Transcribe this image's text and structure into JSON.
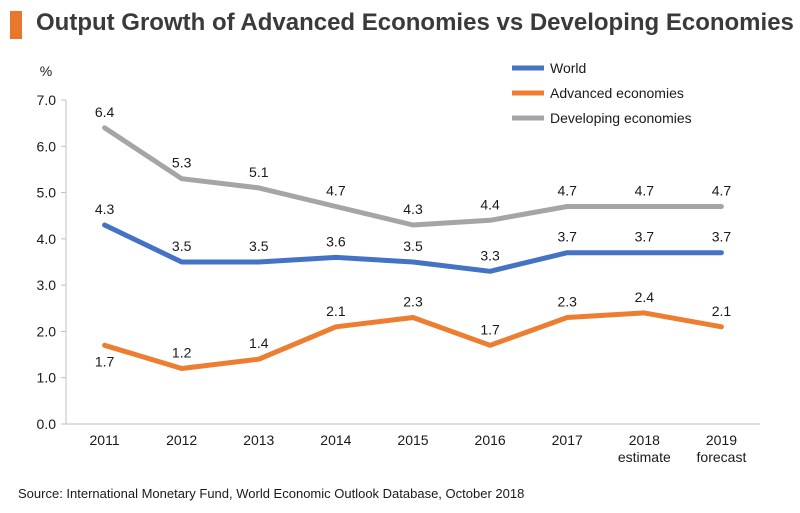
{
  "title": "Output Growth of Advanced Economies vs Developing Economies",
  "source": "Source: International Monetary Fund, World Economic Outlook Database, October 2018",
  "chart_data": {
    "type": "line",
    "ylabel": "%",
    "ylim": [
      0,
      7
    ],
    "yticks": [
      "0.0",
      "1.0",
      "2.0",
      "3.0",
      "4.0",
      "5.0",
      "6.0",
      "7.0"
    ],
    "categories": [
      [
        "2011"
      ],
      [
        "2012"
      ],
      [
        "2013"
      ],
      [
        "2014"
      ],
      [
        "2015"
      ],
      [
        "2016"
      ],
      [
        "2017"
      ],
      [
        "2018",
        "estimate"
      ],
      [
        "2019",
        "forecast"
      ]
    ],
    "series": [
      {
        "name": "World",
        "color": "#4472c4",
        "values": [
          4.3,
          3.5,
          3.5,
          3.6,
          3.5,
          3.3,
          3.7,
          3.7,
          3.7
        ],
        "labels": [
          "4.3",
          "3.5",
          "3.5",
          "3.6",
          "3.5",
          "3.3",
          "3.7",
          "3.7",
          "3.7"
        ],
        "label_pos": [
          "above",
          "above",
          "above",
          "above",
          "above",
          "above",
          "above",
          "above",
          "above"
        ]
      },
      {
        "name": "Advanced economies",
        "color": "#ed7d31",
        "values": [
          1.7,
          1.2,
          1.4,
          2.1,
          2.3,
          1.7,
          2.3,
          2.4,
          2.1
        ],
        "labels": [
          "1.7",
          "1.2",
          "1.4",
          "2.1",
          "2.3",
          "1.7",
          "2.3",
          "2.4",
          "2.1"
        ],
        "label_pos": [
          "below",
          "above",
          "above",
          "above",
          "above",
          "above",
          "above",
          "above",
          "above"
        ]
      },
      {
        "name": "Developing economies",
        "color": "#a5a5a5",
        "values": [
          6.4,
          5.3,
          5.1,
          4.7,
          4.3,
          4.4,
          4.7,
          4.7,
          4.7
        ],
        "labels": [
          "6.4",
          "5.3",
          "5.1",
          "4.7",
          "4.3",
          "4.4",
          "4.7",
          "4.7",
          "4.7"
        ],
        "label_pos": [
          "above",
          "above",
          "above",
          "above",
          "above",
          "above",
          "above",
          "above",
          "above"
        ]
      }
    ],
    "legend_position": "top-right"
  }
}
